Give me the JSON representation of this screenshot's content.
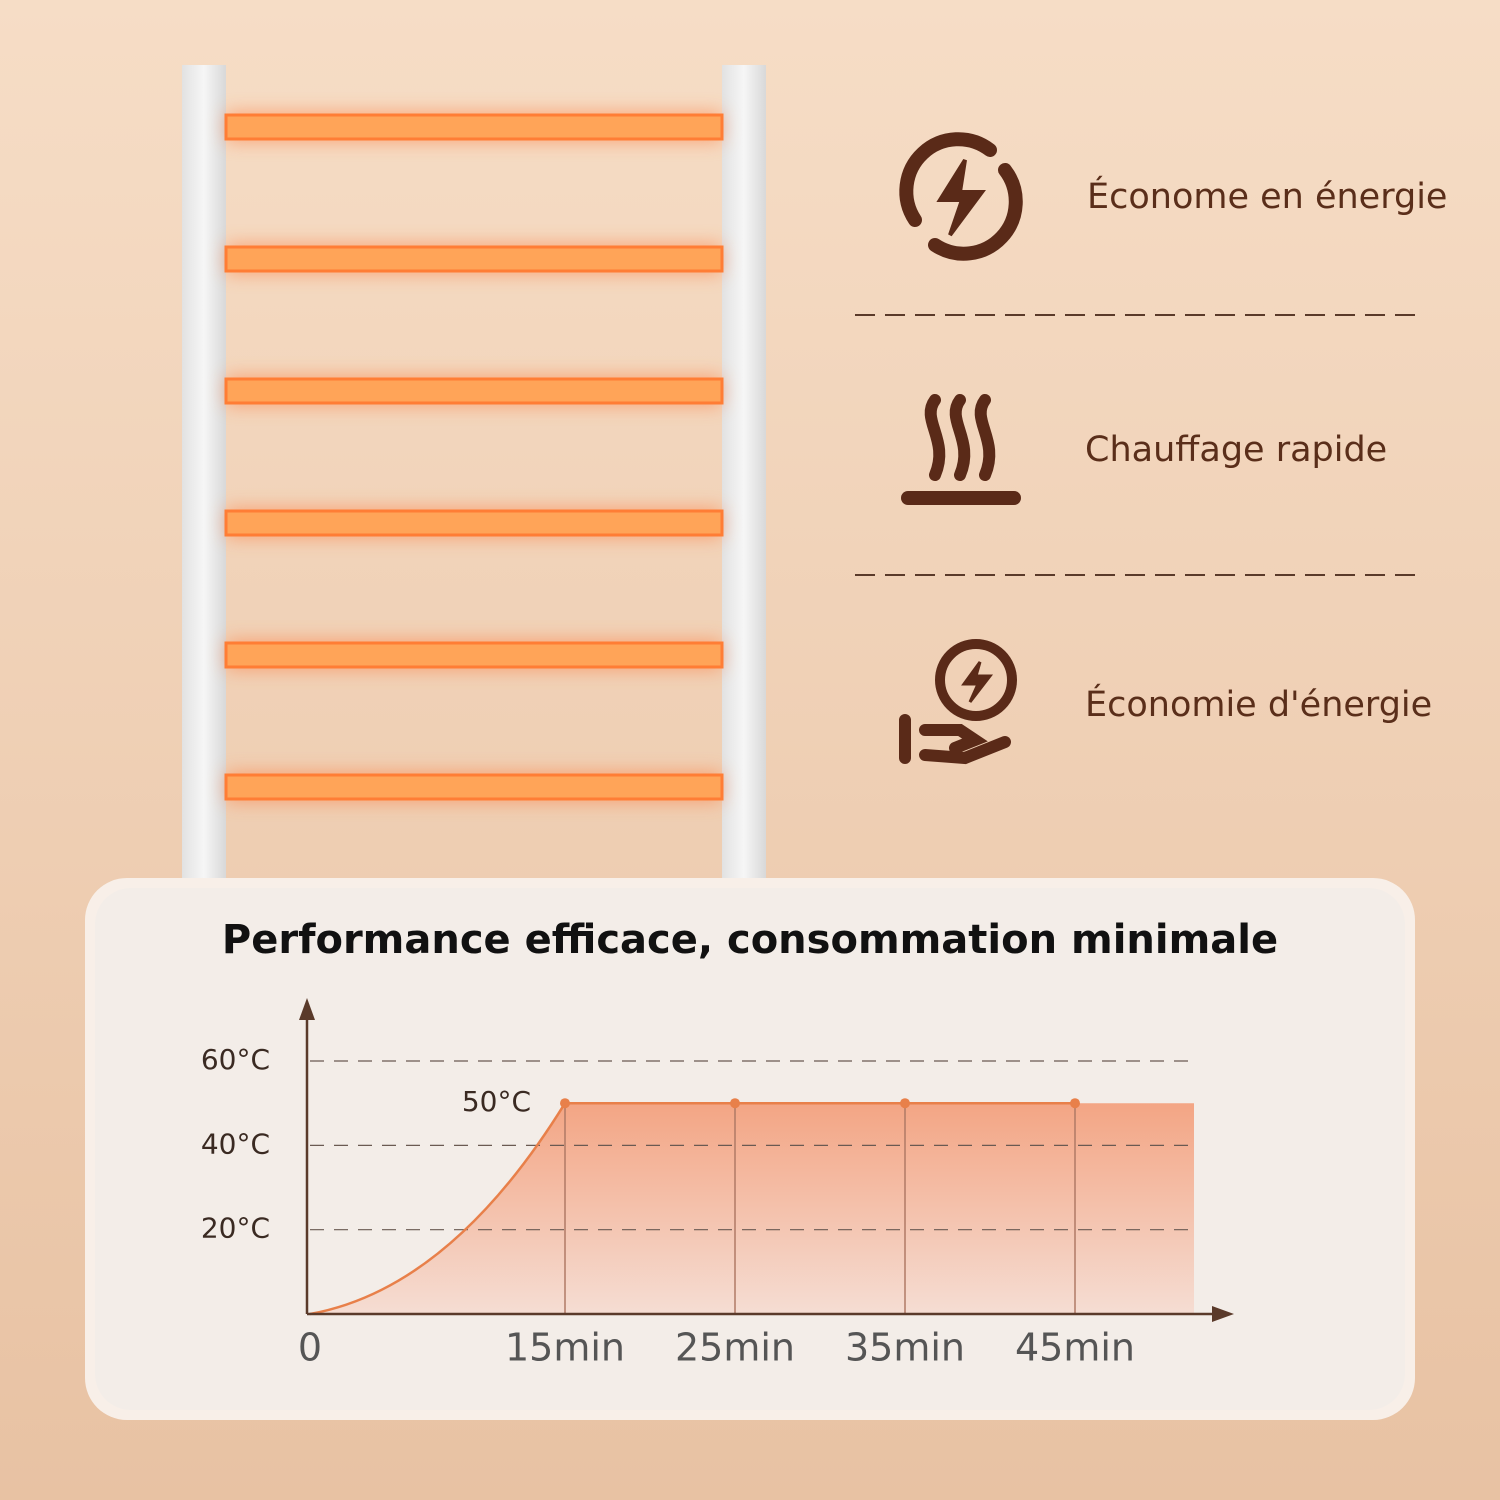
{
  "features": [
    {
      "label": "Économe en énergie"
    },
    {
      "label": "Chauffage rapide"
    },
    {
      "label": "Économie d'énergie"
    }
  ],
  "chart_data": {
    "type": "line",
    "title": "Performance efficace, consommation minimale",
    "annotation": "50°C",
    "series": [
      {
        "color": "#e8804a",
        "x": [
          0,
          15,
          25,
          35,
          45
        ],
        "values": [
          0,
          50,
          50,
          50,
          50
        ]
      }
    ],
    "xlim": [
      0,
      52
    ],
    "xticks": [
      0,
      {
        "value": 15,
        "label": "15min"
      },
      {
        "value": 25,
        "label": "25min"
      },
      {
        "value": 35,
        "label": "35min"
      },
      {
        "value": 45,
        "label": "45min"
      }
    ],
    "ylim": [
      0,
      74
    ],
    "yticks": [
      {
        "value": 20,
        "label": "20°C"
      },
      {
        "value": 40,
        "label": "40°C"
      },
      {
        "value": 60,
        "label": "60°C"
      }
    ],
    "grid": true
  }
}
